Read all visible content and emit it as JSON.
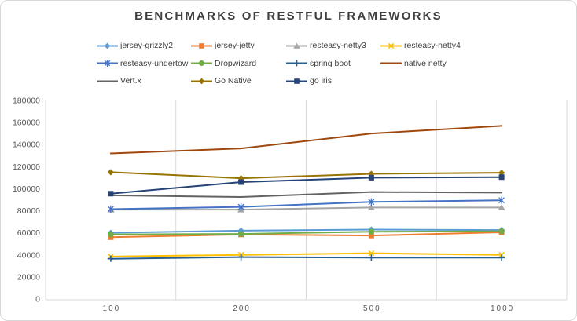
{
  "title": "BENCHMARKS OF RESTFUL FRAMEWORKS",
  "axis_color": "#d9d9d9",
  "gridline_color": "#d9d9d9",
  "tick_label_color": "#595959",
  "title_color": "#3f3f3f",
  "legend_text_color": "#404040",
  "chart_data": {
    "type": "line",
    "title": "BENCHMARKS OF RESTFUL FRAMEWORKS",
    "xlabel": "",
    "ylabel": "",
    "categories": [
      "100",
      "200",
      "500",
      "1000"
    ],
    "ylim": [
      0,
      180000
    ],
    "ytick_step": 20000,
    "grid": "vertical-between-categories",
    "legend_position": "top",
    "series": [
      {
        "name": "jersey-grizzly2",
        "color": "#5B9BD5",
        "marker": "diamond",
        "values": [
          60000,
          62000,
          63000,
          62500
        ]
      },
      {
        "name": "jersey-jetty",
        "color": "#ED7D31",
        "marker": "square",
        "values": [
          56000,
          58500,
          57500,
          60500
        ]
      },
      {
        "name": "resteasy-netty3",
        "color": "#A5A5A5",
        "marker": "triangle",
        "values": [
          81000,
          81000,
          83000,
          83000
        ]
      },
      {
        "name": "resteasy-netty4",
        "color": "#FFC000",
        "marker": "x",
        "values": [
          38500,
          40000,
          41500,
          40000
        ]
      },
      {
        "name": "resteasy-undertow",
        "color": "#4472C4",
        "marker": "asterisk",
        "values": [
          81500,
          83500,
          88000,
          89500
        ]
      },
      {
        "name": "Dropwizard",
        "color": "#70AD47",
        "marker": "circle",
        "values": [
          58500,
          59000,
          61000,
          61500
        ]
      },
      {
        "name": "spring boot",
        "color": "#255E91",
        "marker": "plus",
        "values": [
          36500,
          38000,
          37500,
          37500
        ]
      },
      {
        "name": "native netty",
        "color": "#9E480E",
        "marker": "none",
        "values": [
          132000,
          136500,
          150000,
          157000
        ]
      },
      {
        "name": "Vert.x",
        "color": "#636363",
        "marker": "none",
        "values": [
          94000,
          92500,
          97000,
          96500
        ]
      },
      {
        "name": "Go Native",
        "color": "#997300",
        "marker": "diamond",
        "values": [
          115000,
          109500,
          113500,
          114500
        ]
      },
      {
        "name": "go iris",
        "color": "#264478",
        "marker": "square",
        "values": [
          95500,
          106000,
          110000,
          110500
        ]
      }
    ],
    "legend_rows": [
      [
        0,
        1,
        2,
        3
      ],
      [
        4,
        5,
        6,
        7
      ],
      [
        8,
        9,
        10
      ]
    ]
  }
}
